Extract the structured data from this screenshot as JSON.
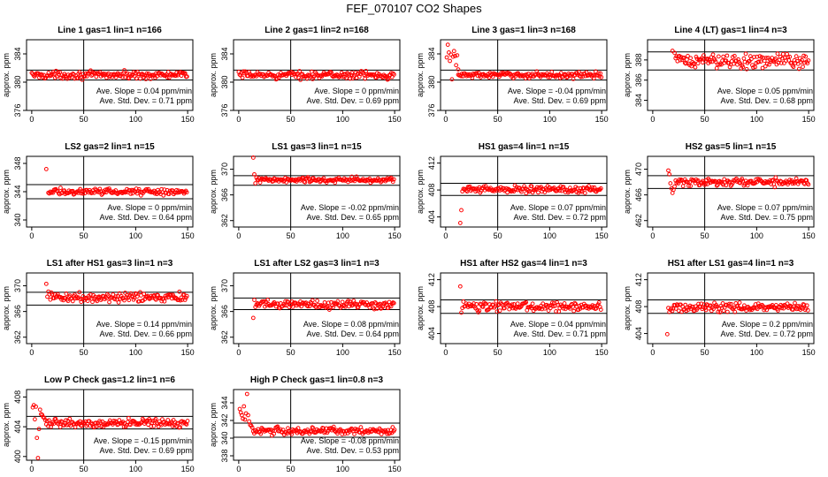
{
  "figure": {
    "title": "FEF_070107  CO2 Shapes",
    "ylabel": "approx. ppm",
    "x_ticks": [
      0,
      50,
      100,
      150
    ],
    "slope_label": "Ave. Slope =",
    "slope_unit": "ppm/min",
    "sd_label": "Ave. Std. Dev. =",
    "sd_unit": "ppm",
    "colors": {
      "points": "#ff0000",
      "axes": "#000000",
      "background": "#ffffff"
    }
  },
  "chart_data": [
    {
      "type": "scatter",
      "title": "Line 1 gas=1 lin=1 n=166",
      "ylim": [
        376,
        386
      ],
      "yticks": [
        376,
        380,
        384
      ],
      "hlines": [
        380.3,
        381.7
      ],
      "vline": 50,
      "ave_slope": "0.04",
      "ave_sd": "0.71",
      "series": [
        {
          "start": 0,
          "end": 150,
          "level": 381.0,
          "noise": 0.25,
          "lead": []
        }
      ]
    },
    {
      "type": "scatter",
      "title": "Line 2 gas=1 lin=2 n=168",
      "ylim": [
        376,
        386
      ],
      "yticks": [
        376,
        380,
        384
      ],
      "hlines": [
        380.3,
        381.7
      ],
      "vline": 50,
      "ave_slope": "0",
      "ave_sd": "0.69",
      "series": [
        {
          "start": 0,
          "end": 150,
          "level": 381.0,
          "noise": 0.25,
          "lead": []
        }
      ]
    },
    {
      "type": "scatter",
      "title": "Line 3 gas=1 lin=3 n=168",
      "ylim": [
        376,
        386
      ],
      "yticks": [
        376,
        380,
        384
      ],
      "hlines": [
        380.3,
        381.7
      ],
      "vline": 50,
      "ave_slope": "-0.04",
      "ave_sd": "0.69",
      "series": [
        {
          "start": 12,
          "end": 150,
          "level": 381.0,
          "noise": 0.2,
          "lead": [
            [
              1,
              383.5
            ],
            [
              2,
              385.3
            ],
            [
              3,
              384.2
            ],
            [
              4,
              383.0
            ],
            [
              5,
              383.9
            ],
            [
              6,
              380.4
            ],
            [
              7,
              383.6
            ],
            [
              8,
              384.4
            ],
            [
              9,
              383.7
            ],
            [
              10,
              382.4
            ],
            [
              11,
              383.8
            ],
            [
              12,
              381.8
            ]
          ]
        }
      ]
    },
    {
      "type": "scatter",
      "title": "Line 4 (LT) gas=1 lin=4 n=3",
      "ylim": [
        383,
        390
      ],
      "yticks": [
        384,
        386,
        388
      ],
      "hlines": [
        387.0,
        388.8
      ],
      "vline": 50,
      "ave_slope": "0.05",
      "ave_sd": "0.68",
      "series": [
        {
          "start": 22,
          "end": 150,
          "level": 387.9,
          "noise": 0.35,
          "lead": [
            [
              17,
              390.0
            ],
            [
              19,
              388.9
            ],
            [
              21,
              388.7
            ]
          ]
        }
      ]
    },
    {
      "type": "scatter",
      "title": "LS2 gas=2 lin=1 n=15",
      "ylim": [
        339,
        349
      ],
      "yticks": [
        340,
        344,
        348
      ],
      "hlines": [
        343.0,
        345.0
      ],
      "vline": 50,
      "ave_slope": "0",
      "ave_sd": "0.64",
      "series": [
        {
          "start": 16,
          "end": 150,
          "level": 344.0,
          "noise": 0.22,
          "lead": [
            [
              14,
              347.2
            ]
          ]
        }
      ]
    },
    {
      "type": "scatter",
      "title": "LS1 gas=3 lin=1 n=15",
      "ylim": [
        361,
        372
      ],
      "yticks": [
        362,
        366,
        370
      ],
      "hlines": [
        367.5,
        369.0
      ],
      "vline": 50,
      "ave_slope": "-0.02",
      "ave_sd": "0.65",
      "series": [
        {
          "start": 17,
          "end": 150,
          "level": 368.3,
          "noise": 0.22,
          "lead": [
            [
              14,
              371.8
            ],
            [
              15,
              369.2
            ],
            [
              16,
              367.8
            ]
          ]
        }
      ]
    },
    {
      "type": "scatter",
      "title": "HS1 gas=4 lin=1 n=15",
      "ylim": [
        402.5,
        413
      ],
      "yticks": [
        404,
        408,
        412
      ],
      "hlines": [
        407.2,
        409.0
      ],
      "vline": 50,
      "ave_slope": "0.07",
      "ave_sd": "0.72",
      "series": [
        {
          "start": 17,
          "end": 150,
          "level": 408.1,
          "noise": 0.25,
          "lead": [
            [
              14,
              403.1
            ],
            [
              15,
              405.0
            ],
            [
              16,
              407.8
            ]
          ]
        }
      ]
    },
    {
      "type": "scatter",
      "title": "HS2 gas=5 lin=1 n=15",
      "ylim": [
        461,
        472
      ],
      "yticks": [
        462,
        466,
        470
      ],
      "hlines": [
        467.0,
        469.0
      ],
      "vline": 50,
      "ave_slope": "0.07",
      "ave_sd": "0.75",
      "series": [
        {
          "start": 22,
          "end": 150,
          "level": 468.0,
          "noise": 0.3,
          "lead": [
            [
              15,
              469.8
            ],
            [
              16,
              469.2
            ],
            [
              17,
              467.8
            ],
            [
              18,
              467.0
            ],
            [
              19,
              466.3
            ],
            [
              20,
              466.8
            ],
            [
              21,
              467.3
            ]
          ]
        }
      ]
    },
    {
      "type": "scatter",
      "title": "LS1 after HS1 gas=3 lin=1 n=3",
      "ylim": [
        361,
        372
      ],
      "yticks": [
        362,
        366,
        370
      ],
      "hlines": [
        367.0,
        369.0
      ],
      "vline": 50,
      "ave_slope": "0.14",
      "ave_sd": "0.66",
      "series": [
        {
          "start": 17,
          "end": 150,
          "level": 368.2,
          "noise": 0.35,
          "lead": [
            [
              14,
              370.3
            ],
            [
              15,
              368.3
            ],
            [
              16,
              369.1
            ]
          ]
        }
      ]
    },
    {
      "type": "scatter",
      "title": "LS1 after LS2 gas=3 lin=1 n=3",
      "ylim": [
        361,
        372
      ],
      "yticks": [
        362,
        366,
        370
      ],
      "hlines": [
        366.3,
        368.1
      ],
      "vline": 50,
      "ave_slope": "0.08",
      "ave_sd": "0.64",
      "series": [
        {
          "start": 17,
          "end": 150,
          "level": 367.1,
          "noise": 0.35,
          "lead": [
            [
              14,
              365.0
            ],
            [
              15,
              367.8
            ],
            [
              16,
              366.7
            ]
          ]
        }
      ]
    },
    {
      "type": "scatter",
      "title": "HS1 after HS2 gas=4 lin=1 n=3",
      "ylim": [
        402.5,
        413
      ],
      "yticks": [
        404,
        408,
        412
      ],
      "hlines": [
        407.0,
        409.0
      ],
      "vline": 50,
      "ave_slope": "0.04",
      "ave_sd": "0.71",
      "series": [
        {
          "start": 17,
          "end": 150,
          "level": 408.0,
          "noise": 0.32,
          "lead": [
            [
              14,
              411.0
            ],
            [
              15,
              407.1
            ],
            [
              16,
              407.8
            ]
          ]
        }
      ]
    },
    {
      "type": "scatter",
      "title": "HS1 after LS1 gas=4 lin=1 n=3",
      "ylim": [
        402.5,
        413
      ],
      "yticks": [
        404,
        408,
        412
      ],
      "hlines": [
        407.0,
        409.0
      ],
      "vline": 50,
      "ave_slope": "0.2",
      "ave_sd": "0.72",
      "series": [
        {
          "start": 17,
          "end": 150,
          "level": 407.9,
          "noise": 0.32,
          "lead": [
            [
              14,
              403.9
            ],
            [
              15,
              407.8
            ],
            [
              16,
              407.2
            ]
          ]
        }
      ]
    },
    {
      "type": "scatter",
      "title": "Low P Check gas=1.2 lin=1 n=6",
      "ylim": [
        399.5,
        409
      ],
      "yticks": [
        400,
        404,
        408
      ],
      "hlines": [
        403.7,
        405.4
      ],
      "vline": 50,
      "ave_slope": "-0.15",
      "ave_sd": "0.69",
      "series": [
        {
          "start": 14,
          "end": 150,
          "level": 404.5,
          "noise": 0.25,
          "lead": [
            [
              1,
              406.6
            ],
            [
              2,
              406.9
            ],
            [
              3,
              405.0
            ],
            [
              4,
              406.7
            ],
            [
              5,
              402.5
            ],
            [
              6,
              399.8
            ],
            [
              7,
              403.7
            ],
            [
              8,
              406.3
            ],
            [
              9,
              405.7
            ],
            [
              10,
              405.6
            ],
            [
              11,
              405.3
            ],
            [
              12,
              405.2
            ],
            [
              13,
              404.9
            ]
          ]
        }
      ]
    },
    {
      "type": "scatter",
      "title": "High P Check gas=1 lin=0.8 n=3",
      "ylim": [
        337.5,
        345.5
      ],
      "yticks": [
        338,
        340,
        342,
        344
      ],
      "hlines": [
        340.1,
        341.7
      ],
      "vline": 50,
      "ave_slope": "-0.08",
      "ave_sd": "0.53",
      "series": [
        {
          "start": 14,
          "end": 150,
          "level": 340.8,
          "noise": 0.2,
          "lead": [
            [
              1,
              343.3
            ],
            [
              2,
              342.9
            ],
            [
              3,
              342.6
            ],
            [
              4,
              342.2
            ],
            [
              5,
              343.6
            ],
            [
              6,
              342.1
            ],
            [
              7,
              342.8
            ],
            [
              8,
              345.0
            ],
            [
              9,
              342.6
            ],
            [
              10,
              341.9
            ],
            [
              11,
              341.5
            ],
            [
              12,
              341.4
            ],
            [
              13,
              341.2
            ]
          ]
        }
      ]
    }
  ]
}
